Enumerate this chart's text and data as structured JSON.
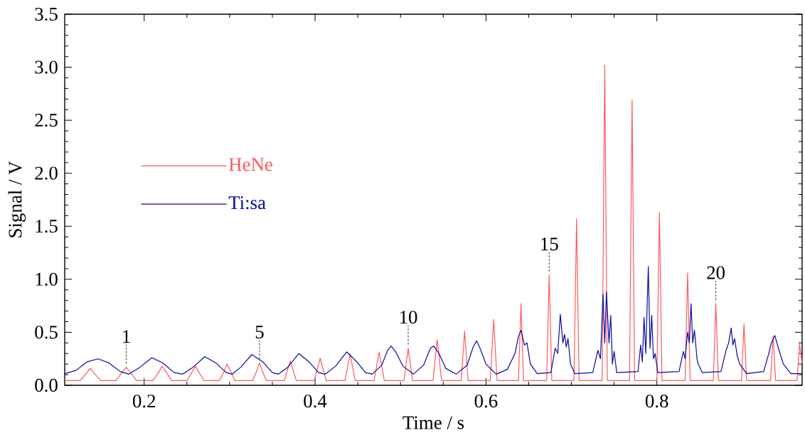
{
  "chart_data": {
    "type": "line",
    "xlabel": "Time / s",
    "ylabel": "Signal / V",
    "xlim": [
      0.107,
      0.97
    ],
    "ylim": [
      0,
      3.5
    ],
    "xticks": [
      0.2,
      0.4,
      0.6,
      0.8
    ],
    "yticks": [
      {
        "value": 0,
        "label": "0.0"
      },
      0.5,
      {
        "value": 1,
        "label": "1.0"
      },
      1.5,
      {
        "value": 2,
        "label": "2.0"
      },
      2.5,
      {
        "value": 3,
        "label": "3.0"
      },
      3.5
    ],
    "legend": "left",
    "series": [
      {
        "name": "HeNe",
        "color": "#ff5a5a",
        "x": [
          0.107,
          0.125,
          0.131,
          0.137,
          0.143,
          0.149,
          0.167,
          0.173,
          0.179,
          0.185,
          0.191,
          0.21,
          0.216,
          0.221,
          0.227,
          0.232,
          0.25,
          0.255,
          0.26,
          0.265,
          0.27,
          0.288,
          0.293,
          0.297,
          0.302,
          0.306,
          0.327,
          0.331,
          0.335,
          0.339,
          0.343,
          0.364,
          0.371,
          0.378,
          0.399,
          0.406,
          0.413,
          0.435,
          0.441,
          0.447,
          0.469,
          0.475,
          0.481,
          0.504,
          0.509,
          0.514,
          0.538,
          0.543,
          0.548,
          0.571,
          0.575,
          0.579,
          0.605,
          0.609,
          0.613,
          0.638,
          0.641,
          0.644,
          0.671,
          0.674,
          0.677,
          0.703,
          0.706,
          0.709,
          0.736,
          0.739,
          0.742,
          0.768,
          0.771,
          0.774,
          0.8,
          0.803,
          0.806,
          0.833,
          0.836,
          0.839,
          0.866,
          0.869,
          0.872,
          0.899,
          0.902,
          0.905,
          0.933,
          0.936,
          0.939,
          0.964,
          0.967,
          0.97
        ],
        "values": [
          0.045,
          0.045,
          0.1,
          0.16,
          0.1,
          0.045,
          0.045,
          0.11,
          0.17,
          0.11,
          0.045,
          0.045,
          0.11,
          0.18,
          0.11,
          0.045,
          0.045,
          0.11,
          0.18,
          0.11,
          0.045,
          0.045,
          0.12,
          0.2,
          0.12,
          0.045,
          0.045,
          0.12,
          0.21,
          0.12,
          0.045,
          0.045,
          0.23,
          0.045,
          0.045,
          0.255,
          0.045,
          0.045,
          0.295,
          0.045,
          0.045,
          0.315,
          0.045,
          0.045,
          0.35,
          0.045,
          0.045,
          0.43,
          0.045,
          0.045,
          0.51,
          0.045,
          0.045,
          0.62,
          0.045,
          0.045,
          0.77,
          0.045,
          0.045,
          1.04,
          0.045,
          0.045,
          1.57,
          0.045,
          0.045,
          3.02,
          0.045,
          0.045,
          2.69,
          0.045,
          0.045,
          1.63,
          0.045,
          0.045,
          1.06,
          0.045,
          0.045,
          0.77,
          0.045,
          0.045,
          0.58,
          0.045,
          0.045,
          0.46,
          0.045,
          0.045,
          0.39,
          0.2
        ]
      },
      {
        "name": "Ti:sa",
        "color": "#0a0a9e",
        "x": [
          0.107,
          0.12,
          0.133,
          0.146,
          0.159,
          0.172,
          0.182,
          0.195,
          0.209,
          0.222,
          0.235,
          0.245,
          0.257,
          0.271,
          0.284,
          0.296,
          0.303,
          0.313,
          0.326,
          0.339,
          0.35,
          0.357,
          0.368,
          0.381,
          0.393,
          0.404,
          0.412,
          0.424,
          0.437,
          0.449,
          0.459,
          0.467,
          0.478,
          0.485,
          0.489,
          0.494,
          0.503,
          0.515,
          0.527,
          0.535,
          0.539,
          0.545,
          0.553,
          0.565,
          0.578,
          0.585,
          0.589,
          0.593,
          0.6,
          0.612,
          0.625,
          0.634,
          0.638,
          0.641,
          0.645,
          0.648,
          0.652,
          0.66,
          0.676,
          0.681,
          0.684,
          0.687,
          0.69,
          0.692,
          0.694,
          0.696,
          0.699,
          0.704,
          0.725,
          0.731,
          0.734,
          0.737,
          0.739,
          0.741,
          0.744,
          0.746,
          0.748,
          0.75,
          0.753,
          0.778,
          0.781,
          0.783,
          0.785,
          0.787,
          0.79,
          0.792,
          0.794,
          0.796,
          0.798,
          0.801,
          0.826,
          0.831,
          0.833,
          0.836,
          0.838,
          0.84,
          0.842,
          0.844,
          0.847,
          0.848,
          0.853,
          0.875,
          0.881,
          0.884,
          0.887,
          0.889,
          0.891,
          0.894,
          0.897,
          0.905,
          0.925,
          0.931,
          0.934,
          0.938,
          0.943,
          0.948,
          0.957,
          0.97
        ],
        "values": [
          0.11,
          0.14,
          0.22,
          0.25,
          0.21,
          0.13,
          0.105,
          0.17,
          0.26,
          0.21,
          0.12,
          0.105,
          0.17,
          0.27,
          0.21,
          0.12,
          0.105,
          0.17,
          0.29,
          0.22,
          0.12,
          0.105,
          0.17,
          0.3,
          0.22,
          0.12,
          0.105,
          0.18,
          0.315,
          0.22,
          0.12,
          0.105,
          0.19,
          0.33,
          0.37,
          0.32,
          0.18,
          0.105,
          0.19,
          0.35,
          0.37,
          0.3,
          0.16,
          0.105,
          0.19,
          0.36,
          0.42,
          0.35,
          0.2,
          0.105,
          0.15,
          0.3,
          0.46,
          0.52,
          0.38,
          0.4,
          0.2,
          0.11,
          0.12,
          0.35,
          0.3,
          0.67,
          0.4,
          0.48,
          0.36,
          0.44,
          0.2,
          0.11,
          0.12,
          0.33,
          0.25,
          0.86,
          0.4,
          0.88,
          0.4,
          0.66,
          0.2,
          0.32,
          0.12,
          0.13,
          0.38,
          0.22,
          0.64,
          0.3,
          1.12,
          0.35,
          0.66,
          0.25,
          0.3,
          0.12,
          0.13,
          0.32,
          0.25,
          0.5,
          0.4,
          0.77,
          0.4,
          0.52,
          0.25,
          0.21,
          0.12,
          0.13,
          0.33,
          0.4,
          0.54,
          0.38,
          0.44,
          0.28,
          0.2,
          0.11,
          0.13,
          0.3,
          0.4,
          0.47,
          0.33,
          0.2,
          0.11,
          0.11
        ]
      }
    ],
    "annotations": [
      {
        "text": "1",
        "x": 0.179,
        "y": 0.17
      },
      {
        "text": "5",
        "x": 0.335,
        "y": 0.21
      },
      {
        "text": "10",
        "x": 0.509,
        "y": 0.35
      },
      {
        "text": "15",
        "x": 0.674,
        "y": 1.04
      },
      {
        "text": "20",
        "x": 0.869,
        "y": 0.77
      }
    ]
  }
}
